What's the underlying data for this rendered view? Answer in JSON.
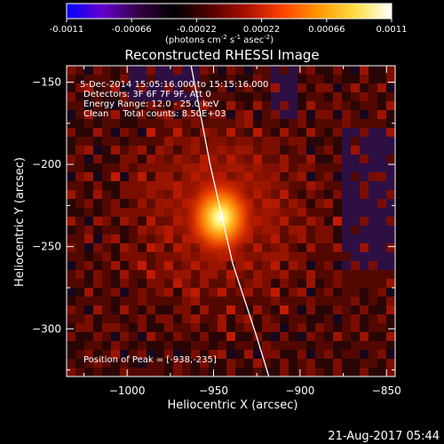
{
  "colorbar": {
    "ticks": [
      "-0.0011",
      "-0.00066",
      "-0.00022",
      "0.00022",
      "0.00066",
      "0.0011"
    ],
    "min": -0.0011,
    "max": 0.0011,
    "units_main": "(photons cm",
    "units_sup1": "-2",
    "units_mid1": " s",
    "units_sup2": "-1",
    "units_mid2": " asec",
    "units_sup3": "-2",
    "units_end": ")",
    "stops": [
      "#0000ff",
      "#6600cc",
      "#330044",
      "#000000",
      "#550000",
      "#aa1100",
      "#ff4400",
      "#ff9900",
      "#ffdd44",
      "#ffffff"
    ]
  },
  "chart_data": {
    "type": "heatmap",
    "title": "Reconstructed RHESSI Image",
    "xlabel": "Heliocentric X (arcsec)",
    "ylabel": "Heliocentric Y (arcsec)",
    "xlim": [
      -1035,
      -845
    ],
    "ylim": [
      -329,
      -140
    ],
    "x_ticks": [
      -1000,
      -950,
      -900,
      -850
    ],
    "x_tick_labels": [
      "−1000",
      "−950",
      "−900",
      "−850"
    ],
    "y_ticks": [
      -150,
      -200,
      -250,
      -300
    ],
    "y_tick_labels": [
      "−150",
      "−200",
      "−250",
      "−300"
    ],
    "peak": {
      "x": -938,
      "y": -235
    },
    "annotations": [
      "5-Dec-2014 15:05:16.000 to 15:15:16.000",
      "Detectors: 3F 6F 7F 9F, Att 0",
      "Energy Range: 12.0 - 25.0 keV",
      "Clean     Total counts: 8.50E+03"
    ],
    "peak_label": "Position of Peak = [-938,-235]",
    "limb_line": [
      [
        -963,
        -140
      ],
      [
        -952,
        -200
      ],
      [
        -939,
        -260
      ],
      [
        -925,
        -305
      ],
      [
        -918,
        -329
      ]
    ]
  },
  "footer": {
    "timestamp": "21-Aug-2017 05:44"
  }
}
